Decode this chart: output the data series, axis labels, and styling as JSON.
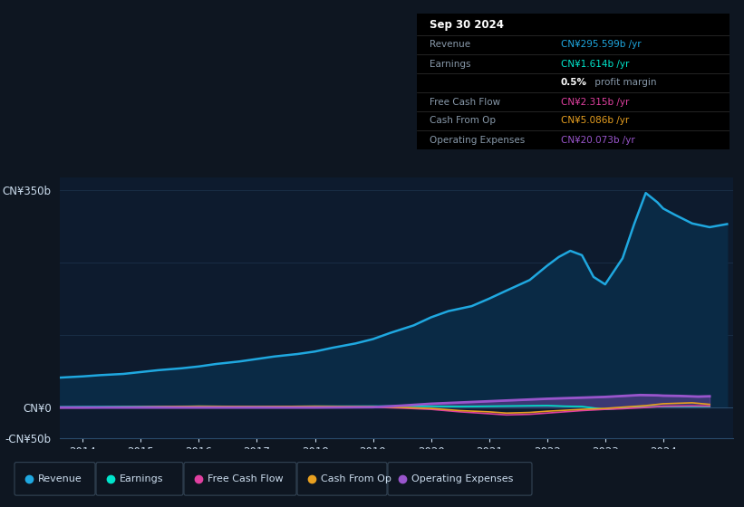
{
  "bg_color": "#0e1621",
  "plot_bg_color": "#0d1b2e",
  "grid_color": "#1e3550",
  "text_color": "#8899aa",
  "axis_label_color": "#ccddee",
  "revenue_color": "#1fa8e0",
  "revenue_fill": "#0a2a45",
  "earnings_color": "#00e5cc",
  "fcf_color": "#e040a0",
  "cfo_color": "#e8a020",
  "opex_color": "#9955cc",
  "ylim": [
    -50,
    370
  ],
  "xlim": [
    2013.6,
    2025.2
  ],
  "ytick_vals": [
    -50,
    0,
    350
  ],
  "ytick_labels": [
    "-CN¥50b",
    "CN¥0",
    "CN¥350b"
  ],
  "xtick_vals": [
    2014,
    2015,
    2016,
    2017,
    2018,
    2019,
    2020,
    2021,
    2022,
    2023,
    2024
  ],
  "legend_items": [
    "Revenue",
    "Earnings",
    "Free Cash Flow",
    "Cash From Op",
    "Operating Expenses"
  ],
  "legend_colors": [
    "#1fa8e0",
    "#00e5cc",
    "#e040a0",
    "#e8a020",
    "#9955cc"
  ],
  "tooltip_title": "Sep 30 2024",
  "tooltip_rows": [
    {
      "label": "Revenue",
      "value": "CN¥295.599b /yr",
      "color": "#1fa8e0"
    },
    {
      "label": "Earnings",
      "value": "CN¥1.614b /yr",
      "color": "#00e5cc"
    },
    {
      "label": "",
      "value": "0.5% profit margin",
      "color": "mixed"
    },
    {
      "label": "Free Cash Flow",
      "value": "CN¥2.315b /yr",
      "color": "#e040a0"
    },
    {
      "label": "Cash From Op",
      "value": "CN¥5.086b /yr",
      "color": "#e8a020"
    },
    {
      "label": "Operating Expenses",
      "value": "CN¥20.073b /yr",
      "color": "#9955cc"
    }
  ],
  "rev_x": [
    2013.6,
    2014.0,
    2014.3,
    2014.7,
    2015.0,
    2015.3,
    2015.7,
    2016.0,
    2016.3,
    2016.7,
    2017.0,
    2017.3,
    2017.7,
    2018.0,
    2018.3,
    2018.7,
    2019.0,
    2019.3,
    2019.7,
    2020.0,
    2020.3,
    2020.7,
    2021.0,
    2021.3,
    2021.7,
    2022.0,
    2022.2,
    2022.4,
    2022.6,
    2022.8,
    2023.0,
    2023.3,
    2023.5,
    2023.7,
    2023.9,
    2024.0,
    2024.2,
    2024.5,
    2024.8,
    2025.1
  ],
  "rev_y": [
    48,
    50,
    52,
    54,
    57,
    60,
    63,
    66,
    70,
    74,
    78,
    82,
    86,
    90,
    96,
    103,
    110,
    120,
    132,
    145,
    155,
    163,
    175,
    188,
    205,
    228,
    242,
    252,
    245,
    210,
    198,
    240,
    295,
    345,
    330,
    320,
    310,
    296,
    290,
    295
  ],
  "earn_x": [
    2013.6,
    2014.0,
    2015.0,
    2016.0,
    2016.5,
    2017.0,
    2018.0,
    2019.0,
    2020.0,
    2020.5,
    2021.0,
    2021.5,
    2022.0,
    2022.3,
    2022.6,
    2023.0,
    2023.5,
    2024.0,
    2024.8
  ],
  "earn_y": [
    1.0,
    1.2,
    1.5,
    2.0,
    1.8,
    1.5,
    2.0,
    2.2,
    2.0,
    1.5,
    2.0,
    2.5,
    3.0,
    2.0,
    1.5,
    -3.0,
    0.5,
    1.5,
    1.6
  ],
  "fcf_x": [
    2013.6,
    2014.0,
    2015.0,
    2016.0,
    2017.0,
    2018.0,
    2019.0,
    2019.5,
    2020.0,
    2020.5,
    2021.0,
    2021.3,
    2021.7,
    2022.0,
    2022.3,
    2022.6,
    2023.0,
    2023.3,
    2023.7,
    2024.0,
    2024.5,
    2024.8
  ],
  "fcf_y": [
    -0.5,
    -0.5,
    0.5,
    1.5,
    1.0,
    1.5,
    0.5,
    -1.0,
    -3.0,
    -7.0,
    -10.0,
    -12.0,
    -11.0,
    -9.0,
    -7.0,
    -5.0,
    -3.0,
    -2.0,
    0.0,
    2.0,
    2.5,
    2.3
  ],
  "cfo_x": [
    2013.6,
    2014.0,
    2015.0,
    2016.0,
    2017.0,
    2018.0,
    2019.0,
    2019.5,
    2020.0,
    2020.5,
    2021.0,
    2021.3,
    2021.7,
    2022.0,
    2022.3,
    2022.6,
    2023.0,
    2023.3,
    2023.7,
    2024.0,
    2024.5,
    2024.8
  ],
  "cfo_y": [
    -0.3,
    0.2,
    0.8,
    2.0,
    1.5,
    2.0,
    1.5,
    0.0,
    -1.5,
    -5.0,
    -7.0,
    -9.0,
    -8.0,
    -6.0,
    -4.5,
    -3.0,
    -1.5,
    0.5,
    3.0,
    6.0,
    7.5,
    5.0
  ],
  "opex_x": [
    2013.6,
    2014.0,
    2015.0,
    2016.0,
    2017.0,
    2018.0,
    2019.0,
    2019.5,
    2020.0,
    2020.5,
    2021.0,
    2021.5,
    2022.0,
    2022.5,
    2023.0,
    2023.3,
    2023.6,
    2023.9,
    2024.0,
    2024.3,
    2024.6,
    2024.8
  ],
  "opex_y": [
    0.0,
    0.0,
    0.0,
    0.0,
    0.0,
    0.0,
    0.5,
    3.0,
    6.0,
    8.0,
    10.0,
    12.0,
    14.0,
    15.5,
    17.0,
    18.5,
    20.0,
    19.5,
    19.0,
    18.5,
    17.5,
    18.0
  ]
}
